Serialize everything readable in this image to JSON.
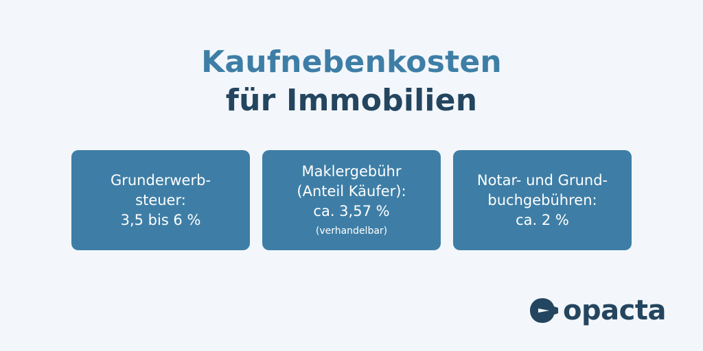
{
  "title": {
    "line1": "Kaufnebenkosten",
    "line2": "für Immobilien"
  },
  "cards": [
    {
      "lines": [
        "Grunderwerb-",
        "steuer:",
        "3,5 bis 6 %"
      ]
    },
    {
      "lines": [
        "Maklergebühr",
        "(Anteil Käufer):",
        "ca. 3,57 %"
      ],
      "note": "(verhandelbar)"
    },
    {
      "lines": [
        "Notar- und Grund-",
        "buchgebühren:",
        "ca. 2 %"
      ]
    }
  ],
  "logo": {
    "text": "opacta",
    "icon": "opacta-logo-mark-icon"
  },
  "colors": {
    "background": "#f3f7fb",
    "accent_blue": "#3e7ea6",
    "dark_navy": "#24455f",
    "card_text": "#ffffff"
  }
}
